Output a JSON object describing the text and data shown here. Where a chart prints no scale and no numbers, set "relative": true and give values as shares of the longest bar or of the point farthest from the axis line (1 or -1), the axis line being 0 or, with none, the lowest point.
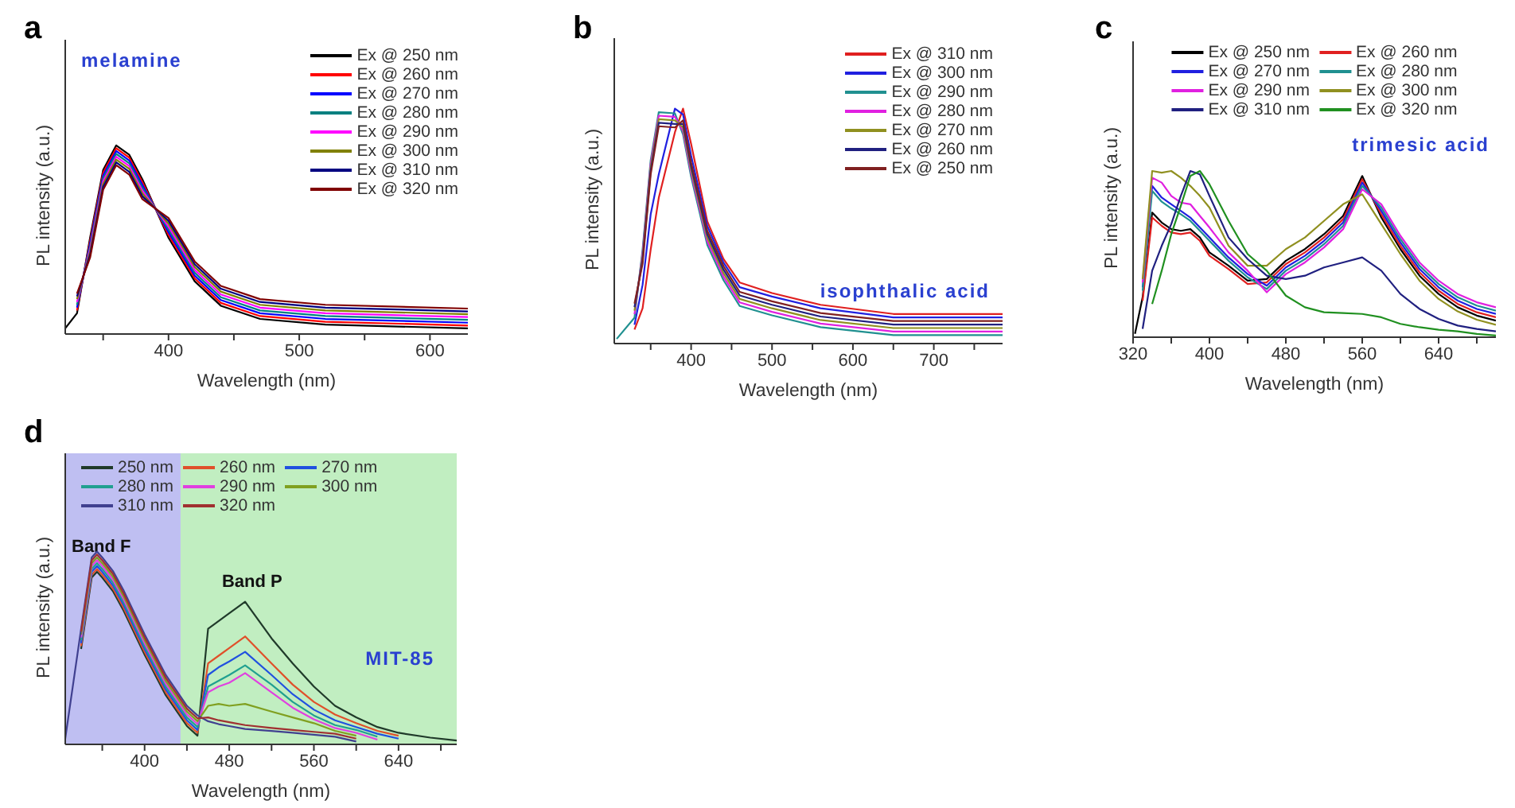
{
  "chart_data": [
    {
      "type": "line",
      "title": "a",
      "xlabel": "Wavelength (nm)",
      "ylabel": "PL intensity (a.u.)",
      "relative": true,
      "legend": "top right",
      "annotations": [
        "melamine"
      ],
      "xlim": [
        321,
        629
      ],
      "xticks": [
        {
          "value": 350,
          "label": null
        },
        400,
        {
          "value": 450,
          "label": null
        },
        500,
        {
          "value": 550,
          "label": null
        },
        600
      ],
      "x": [
        321,
        330,
        340,
        350,
        360,
        370,
        380,
        400,
        420,
        440,
        470,
        520,
        629
      ],
      "series": [
        {
          "name": "Ex @ 250 nm",
          "color": "#000000",
          "values": [
            0.03,
            0.11,
            0.51,
            0.87,
            1.0,
            0.95,
            0.82,
            0.51,
            0.28,
            0.15,
            0.08,
            0.05,
            0.03
          ]
        },
        {
          "name": "Ex @ 260 nm",
          "color": "#ff0000",
          "values": [
            null,
            0.125,
            0.495,
            0.855,
            0.985,
            0.935,
            0.805,
            0.525,
            0.295,
            0.165,
            0.095,
            0.065,
            0.045
          ]
        },
        {
          "name": "Ex @ 270 nm",
          "color": "#0000ff",
          "values": [
            null,
            0.14,
            0.48,
            0.84,
            0.97,
            0.92,
            0.79,
            0.54,
            0.31,
            0.18,
            0.11,
            0.08,
            0.06
          ]
        },
        {
          "name": "Ex @ 280 nm",
          "color": "#008080",
          "values": [
            null,
            0.155,
            0.465,
            0.825,
            0.955,
            0.905,
            0.775,
            0.555,
            0.325,
            0.195,
            0.125,
            0.095,
            0.075
          ]
        },
        {
          "name": "Ex @ 290 nm",
          "color": "#ff00ff",
          "values": [
            null,
            0.17,
            0.45,
            0.81,
            0.94,
            0.89,
            0.76,
            0.57,
            0.34,
            0.21,
            0.14,
            0.11,
            0.09
          ]
        },
        {
          "name": "Ex @ 300 nm",
          "color": "#808000",
          "values": [
            null,
            0.185,
            0.435,
            0.795,
            0.925,
            0.875,
            0.745,
            0.585,
            0.355,
            0.225,
            0.155,
            0.125,
            0.105
          ]
        },
        {
          "name": "Ex @ 310 nm",
          "color": "#000080",
          "values": [
            null,
            0.2,
            0.42,
            0.78,
            0.91,
            0.86,
            0.73,
            0.6,
            0.37,
            0.24,
            0.17,
            0.14,
            0.12
          ]
        },
        {
          "name": "Ex @ 320 nm",
          "color": "#800000",
          "values": [
            null,
            0.215,
            0.405,
            0.765,
            0.895,
            0.845,
            0.715,
            0.615,
            0.385,
            0.255,
            0.185,
            0.155,
            0.135
          ]
        }
      ]
    },
    {
      "type": "line",
      "title": "b",
      "xlabel": "Wavelength (nm)",
      "ylabel": "PL intensity (a.u.)",
      "relative": true,
      "legend": "top right",
      "annotations": [
        "isophthalic acid"
      ],
      "xlim": [
        305,
        785
      ],
      "xticks": [
        {
          "value": 350,
          "label": null
        },
        400,
        {
          "value": 450,
          "label": null
        },
        500,
        {
          "value": 550,
          "label": null
        },
        600,
        {
          "value": 650,
          "label": null
        },
        700,
        {
          "value": 750,
          "label": null
        }
      ],
      "x": [
        308,
        330,
        340,
        350,
        360,
        380,
        390,
        400,
        420,
        440,
        460,
        500,
        560,
        650,
        785
      ],
      "series": [
        {
          "name": "Ex @ 310 nm",
          "color": "#e02020",
          "values": [
            null,
            0.06,
            0.15,
            0.4,
            0.62,
            0.9,
            1.0,
            0.85,
            0.52,
            0.36,
            0.26,
            0.215,
            0.165,
            0.126,
            0.126
          ]
        },
        {
          "name": "Ex @ 300 nm",
          "color": "#2020e0",
          "values": [
            null,
            0.08,
            0.25,
            0.55,
            0.72,
            1.0,
            0.975,
            0.8,
            0.5,
            0.345,
            0.24,
            0.2,
            0.15,
            0.111,
            0.111
          ]
        },
        {
          "name": "Ex @ 290 nm",
          "color": "#209090",
          "values": [
            0.02,
            0.11,
            0.4,
            0.78,
            0.985,
            0.98,
            0.89,
            0.71,
            0.42,
            0.27,
            0.16,
            0.12,
            0.07,
            0.036,
            0.036
          ]
        },
        {
          "name": "Ex @ 280 nm",
          "color": "#e020e0",
          "values": [
            null,
            0.125,
            0.385,
            0.765,
            0.97,
            0.965,
            0.905,
            0.725,
            0.435,
            0.285,
            0.175,
            0.135,
            0.085,
            0.051,
            0.051
          ]
        },
        {
          "name": "Ex @ 270 nm",
          "color": "#909020",
          "values": [
            null,
            0.14,
            0.37,
            0.75,
            0.955,
            0.95,
            0.92,
            0.74,
            0.45,
            0.3,
            0.19,
            0.15,
            0.1,
            0.066,
            0.066
          ]
        },
        {
          "name": "Ex @ 260 nm",
          "color": "#202080",
          "values": [
            null,
            0.155,
            0.355,
            0.735,
            0.94,
            0.935,
            0.935,
            0.755,
            0.465,
            0.315,
            0.205,
            0.165,
            0.115,
            0.081,
            0.081
          ]
        },
        {
          "name": "Ex @ 250 nm",
          "color": "#802020",
          "values": [
            null,
            0.17,
            0.34,
            0.72,
            0.925,
            0.92,
            0.95,
            0.77,
            0.48,
            0.33,
            0.22,
            0.18,
            0.13,
            0.096,
            0.096
          ]
        }
      ]
    },
    {
      "type": "line",
      "title": "c",
      "xlabel": "Wavelength (nm)",
      "ylabel": "PL intensity (a.u.)",
      "relative": true,
      "legend": "top",
      "annotations": [
        "trimesic acid"
      ],
      "xlim": [
        320,
        700
      ],
      "xticks": [
        320,
        {
          "value": 360,
          "label": null
        },
        400,
        {
          "value": 440,
          "label": null
        },
        480,
        {
          "value": 520,
          "label": null
        },
        560,
        {
          "value": 600,
          "label": null
        },
        640,
        {
          "value": 680,
          "label": null
        }
      ],
      "x": [
        322,
        330,
        340,
        350,
        360,
        370,
        380,
        390,
        400,
        420,
        440,
        460,
        480,
        500,
        520,
        540,
        560,
        580,
        600,
        620,
        640,
        660,
        680,
        700
      ],
      "series": [
        {
          "name": "Ex @ 250 nm",
          "color": "#000000",
          "values": [
            0.02,
            0.24,
            0.75,
            0.69,
            0.65,
            0.64,
            0.65,
            0.6,
            0.51,
            0.43,
            0.34,
            0.35,
            0.46,
            0.53,
            0.62,
            0.73,
            0.97,
            0.72,
            0.53,
            0.37,
            0.26,
            0.18,
            0.13,
            0.1
          ]
        },
        {
          "name": "Ex @ 260 nm",
          "color": "#e02020",
          "values": [
            null,
            0.22,
            0.72,
            0.67,
            0.63,
            0.62,
            0.63,
            0.58,
            0.49,
            0.41,
            0.32,
            0.33,
            0.44,
            0.51,
            0.6,
            0.71,
            0.95,
            0.74,
            0.55,
            0.39,
            0.28,
            0.2,
            0.15,
            0.12
          ]
        },
        {
          "name": "Ex @ 270 nm",
          "color": "#2020e0",
          "values": [
            null,
            0.3,
            0.91,
            0.84,
            0.8,
            0.76,
            0.72,
            0.66,
            0.6,
            0.48,
            0.38,
            0.31,
            0.42,
            0.49,
            0.58,
            0.69,
            0.93,
            0.76,
            0.57,
            0.41,
            0.3,
            0.22,
            0.17,
            0.14
          ]
        },
        {
          "name": "Ex @ 280 nm",
          "color": "#209090",
          "values": [
            null,
            0.28,
            0.88,
            0.815,
            0.775,
            0.74,
            0.7,
            0.64,
            0.58,
            0.46,
            0.36,
            0.29,
            0.4,
            0.47,
            0.56,
            0.67,
            0.91,
            0.78,
            0.59,
            0.43,
            0.32,
            0.24,
            0.19,
            0.16
          ]
        },
        {
          "name": "Ex @ 290 nm",
          "color": "#e020e0",
          "values": [
            null,
            0.33,
            0.96,
            0.93,
            0.85,
            0.81,
            0.8,
            0.73,
            0.66,
            0.51,
            0.4,
            0.27,
            0.38,
            0.45,
            0.54,
            0.65,
            0.89,
            0.8,
            0.61,
            0.45,
            0.34,
            0.26,
            0.21,
            0.18
          ]
        },
        {
          "name": "Ex @ 300 nm",
          "color": "#909020",
          "values": [
            null,
            0.35,
            1.0,
            0.99,
            1.0,
            0.96,
            0.91,
            0.85,
            0.78,
            0.55,
            0.43,
            0.43,
            0.53,
            0.6,
            0.7,
            0.8,
            0.86,
            0.68,
            0.5,
            0.34,
            0.23,
            0.155,
            0.105,
            0.075
          ]
        },
        {
          "name": "Ex @ 310 nm",
          "color": "#202080",
          "values": [
            null,
            0.05,
            0.4,
            0.55,
            0.68,
            0.85,
            1.0,
            0.98,
            0.85,
            0.6,
            0.47,
            0.37,
            0.35,
            0.37,
            0.42,
            0.45,
            0.48,
            0.4,
            0.26,
            0.17,
            0.11,
            0.07,
            0.05,
            0.035
          ]
        },
        {
          "name": "Ex @ 320 nm",
          "color": "#209020",
          "values": [
            null,
            null,
            0.2,
            0.4,
            0.62,
            0.79,
            0.97,
            1.0,
            0.92,
            0.7,
            0.5,
            0.4,
            0.25,
            0.18,
            0.15,
            0.145,
            0.14,
            0.12,
            0.08,
            0.06,
            0.045,
            0.035,
            0.02,
            0.01
          ]
        }
      ]
    },
    {
      "type": "line",
      "title": "d",
      "xlabel": "Wavelength (nm)",
      "ylabel": "PL intensity (a.u.)",
      "relative": true,
      "legend": "top left",
      "annotations": [
        "MIT-85"
      ],
      "bands": [
        {
          "axis": "x",
          "from": 325,
          "to": 434,
          "label": "Band F",
          "color": "#8a8ae8"
        },
        {
          "axis": "x",
          "from": 434,
          "to": 695,
          "label": "Band P",
          "color": "#8ee08e"
        }
      ],
      "xlim": [
        325,
        695
      ],
      "xticks": [
        {
          "value": 360,
          "label": null
        },
        400,
        {
          "value": 440,
          "label": null
        },
        480,
        {
          "value": 520,
          "label": null
        },
        560,
        {
          "value": 600,
          "label": null
        },
        640,
        {
          "value": 680,
          "label": null
        }
      ],
      "x": [
        325,
        340,
        350,
        355,
        360,
        370,
        380,
        400,
        420,
        440,
        450,
        460,
        470,
        480,
        495,
        520,
        540,
        560,
        580,
        600,
        620,
        640,
        670,
        695
      ],
      "series": [
        {
          "name": "250 nm",
          "color": "#203a2a",
          "values": [
            null,
            0.495,
            0.865,
            0.895,
            0.865,
            0.795,
            0.695,
            0.465,
            0.255,
            0.095,
            0.045,
            0.6,
            0.64,
            0.68,
            0.74,
            0.55,
            0.42,
            0.3,
            0.2,
            0.14,
            0.09,
            0.06,
            0.035,
            0.02
          ]
        },
        {
          "name": "260 nm",
          "color": "#e0502a",
          "values": [
            null,
            0.51,
            0.88,
            0.91,
            0.88,
            0.81,
            0.71,
            0.48,
            0.27,
            0.11,
            0.06,
            0.42,
            0.46,
            0.5,
            0.56,
            0.42,
            0.31,
            0.22,
            0.155,
            0.11,
            0.07,
            0.045,
            null,
            null
          ]
        },
        {
          "name": "270 nm",
          "color": "#2050e0",
          "values": [
            null,
            0.525,
            0.895,
            0.925,
            0.895,
            0.825,
            0.725,
            0.495,
            0.285,
            0.125,
            0.075,
            0.36,
            0.4,
            0.43,
            0.48,
            0.36,
            0.26,
            0.18,
            0.125,
            0.09,
            0.055,
            0.03,
            null,
            null
          ]
        },
        {
          "name": "280 nm",
          "color": "#20a090",
          "values": [
            null,
            0.54,
            0.91,
            0.94,
            0.91,
            0.84,
            0.74,
            0.51,
            0.3,
            0.14,
            0.09,
            0.3,
            0.33,
            0.36,
            0.41,
            0.31,
            0.22,
            0.15,
            0.1,
            0.075,
            0.04,
            null,
            null,
            null
          ]
        },
        {
          "name": "290 nm",
          "color": "#e040e0",
          "values": [
            null,
            0.555,
            0.925,
            0.955,
            0.925,
            0.855,
            0.755,
            0.525,
            0.315,
            0.155,
            0.105,
            0.27,
            0.3,
            0.32,
            0.37,
            0.27,
            0.19,
            0.13,
            0.085,
            0.06,
            0.025,
            null,
            null,
            null
          ]
        },
        {
          "name": "300 nm",
          "color": "#80a020",
          "values": [
            null,
            0.57,
            0.94,
            0.97,
            0.94,
            0.87,
            0.77,
            0.54,
            0.33,
            0.17,
            0.12,
            0.2,
            0.21,
            0.2,
            0.21,
            0.17,
            0.14,
            0.11,
            0.07,
            0.045,
            null,
            null,
            null,
            null
          ]
        },
        {
          "name": "310 nm",
          "color": "#404090",
          "values": [
            0.03,
            0.6,
            0.97,
            1.0,
            0.97,
            0.9,
            0.8,
            0.57,
            0.36,
            0.2,
            0.15,
            0.12,
            0.105,
            0.095,
            0.08,
            0.07,
            0.06,
            0.05,
            0.04,
            0.015,
            null,
            null,
            null,
            null
          ]
        },
        {
          "name": "320 nm",
          "color": "#a03030",
          "values": [
            null,
            0.585,
            0.955,
            0.985,
            0.955,
            0.885,
            0.785,
            0.555,
            0.345,
            0.185,
            0.135,
            0.14,
            0.125,
            0.115,
            0.1,
            0.085,
            0.075,
            0.065,
            0.055,
            0.03,
            null,
            null,
            null,
            null
          ]
        }
      ]
    }
  ]
}
